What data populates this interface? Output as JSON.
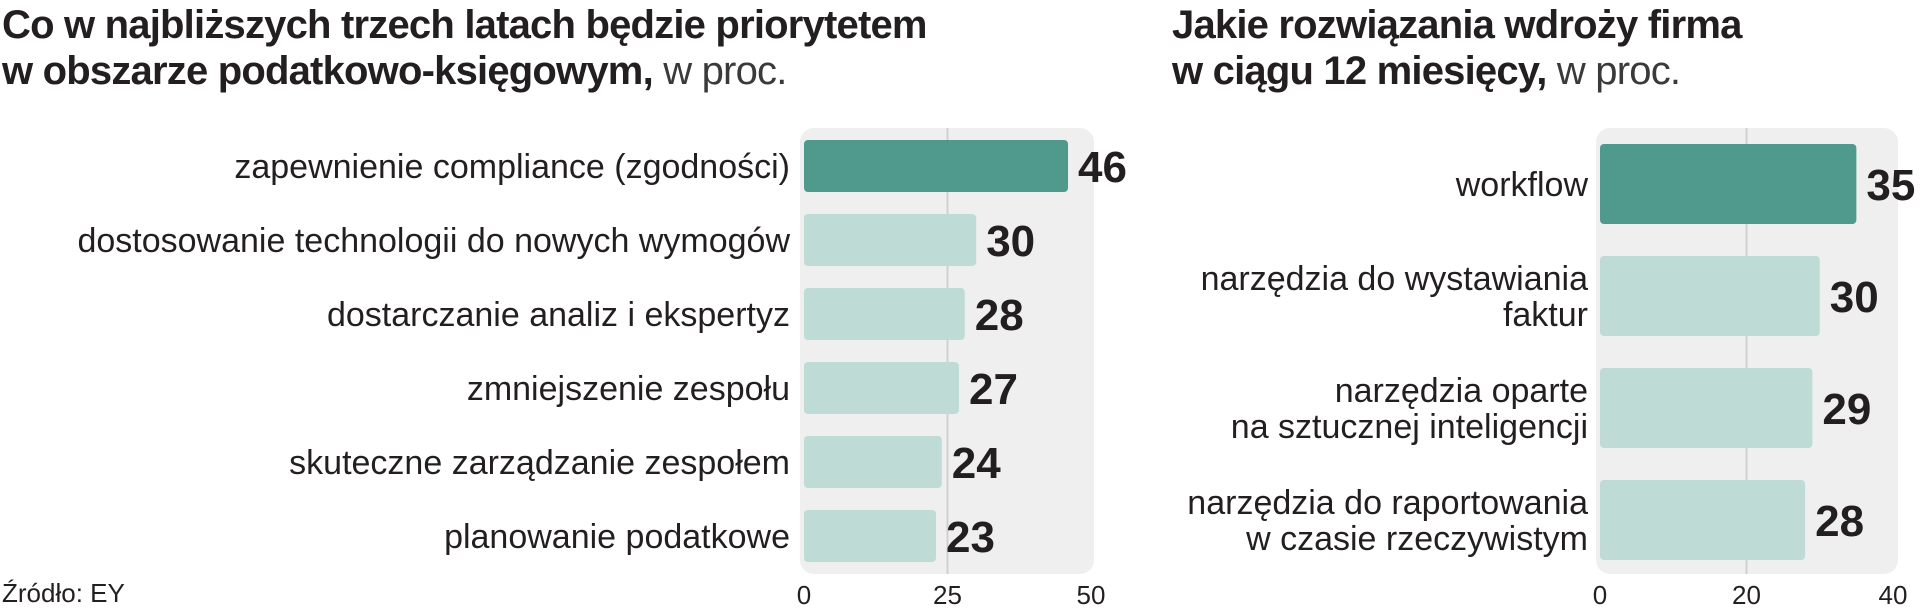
{
  "source": "Źródło: EY",
  "colors": {
    "highlight": "#4f9a8c",
    "bar": "#bfdbd5",
    "panel": "#efefef",
    "grid": "#d0d0d0"
  },
  "chart_data": [
    {
      "type": "bar",
      "orientation": "horizontal",
      "title_line1": "Co w najbliższych trzech latach będzie priorytetem",
      "title_line2_bold": "w obszarze podatkowo-księgowym,",
      "title_line2_light": " w proc.",
      "categories": [
        [
          "zapewnienie compliance (zgodności)"
        ],
        [
          "dostosowanie technologii do nowych wymogów"
        ],
        [
          "dostarczanie analiz i ekspertyz"
        ],
        [
          "zmniejszenie zespołu"
        ],
        [
          "skuteczne zarządzanie zespołem"
        ],
        [
          "planowanie podatkowe"
        ]
      ],
      "values": [
        46,
        30,
        28,
        27,
        24,
        23
      ],
      "value_labels": [
        "46",
        "30",
        "28",
        "27",
        "24",
        "23"
      ],
      "highlight_index": 0,
      "xlim": [
        0,
        50
      ],
      "ticks": [
        0,
        25,
        50
      ],
      "tick_labels": [
        "0",
        "25",
        "50"
      ],
      "grid": true
    },
    {
      "type": "bar",
      "orientation": "horizontal",
      "title_line1": "Jakie rozwiązania wdroży firma",
      "title_line2_bold": "w ciągu 12 miesięcy,",
      "title_line2_light": " w proc.",
      "categories": [
        [
          "workflow"
        ],
        [
          "narzędzia do wystawiania",
          "faktur"
        ],
        [
          "narzędzia oparte",
          "na sztucznej inteligencji"
        ],
        [
          "narzędzia do raportowania",
          "w czasie rzeczywistym"
        ]
      ],
      "values": [
        35,
        30,
        29,
        28
      ],
      "value_labels": [
        "35",
        "30",
        "29",
        "28"
      ],
      "highlight_index": 0,
      "xlim": [
        0,
        40
      ],
      "ticks": [
        0,
        20,
        40
      ],
      "tick_labels": [
        "0",
        "20",
        "40"
      ],
      "grid": true
    }
  ]
}
